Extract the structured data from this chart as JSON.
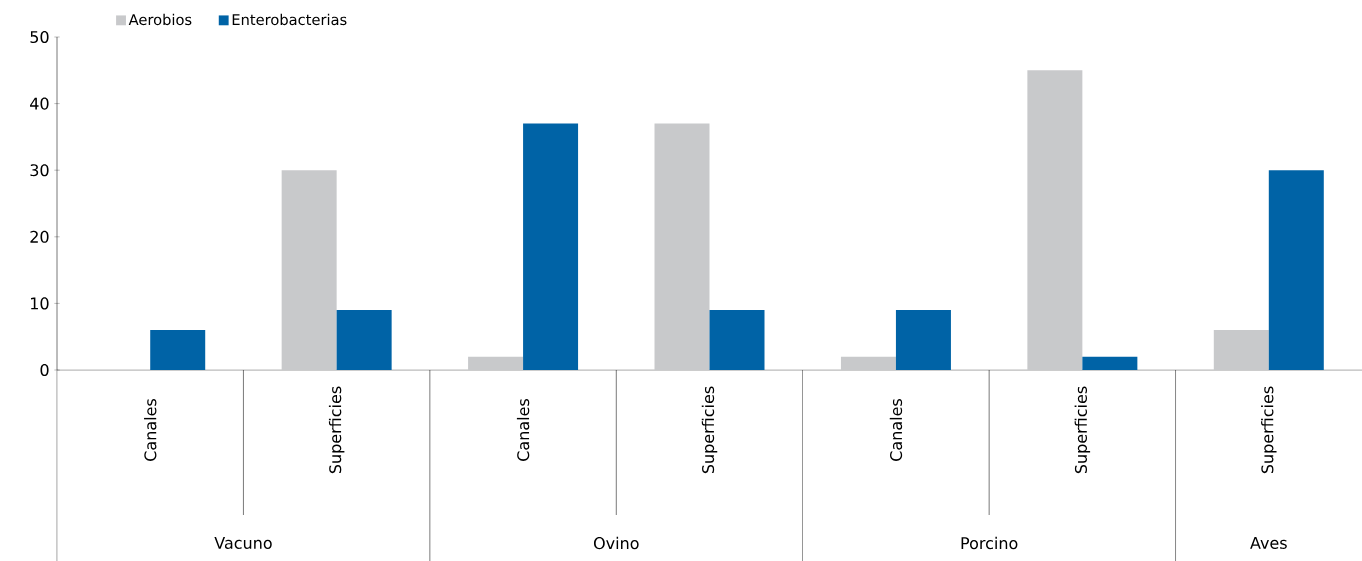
{
  "chart_data": {
    "type": "bar",
    "categories": [
      "Canales",
      "Superficies",
      "Canales",
      "Superficies",
      "Canales",
      "Superficies",
      "Superficies"
    ],
    "series": [
      {
        "name": "Aerobios",
        "color": "#c8c9cb",
        "values": [
          null,
          30,
          2,
          37,
          2,
          45,
          6
        ]
      },
      {
        "name": "Enterobacterias",
        "color": "#0063a6",
        "values": [
          6,
          9,
          37,
          9,
          9,
          2,
          30
        ]
      }
    ],
    "ylim": [
      0,
      50
    ],
    "yticks": [
      0,
      10,
      20,
      30,
      40,
      50
    ],
    "annotations": [
      "Vacuno",
      "Ovino",
      "Porcino",
      "Aves"
    ],
    "legend": "top left",
    "grid": false
  }
}
